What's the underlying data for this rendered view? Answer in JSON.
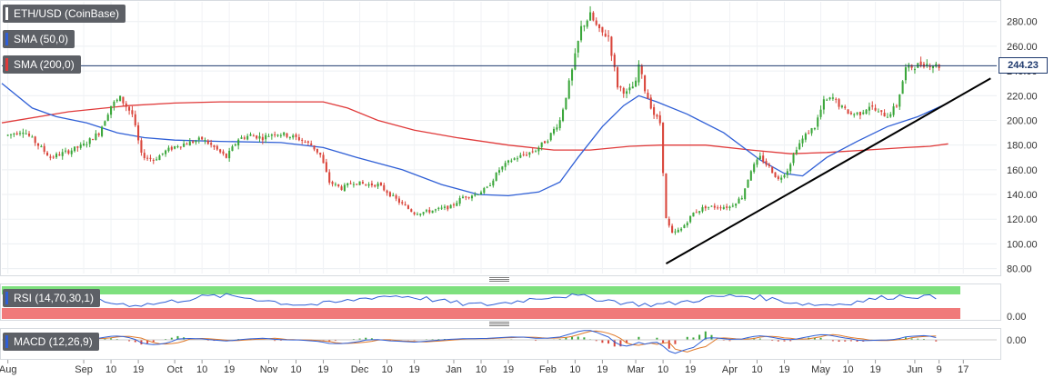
{
  "labels": {
    "symbol": "ETH/USD (CoinBase)",
    "sma50": "SMA (50,0)",
    "sma200": "SMA (200,0)",
    "rsi": "RSI (14,70,30,1)",
    "macd": "MACD (12,26,9)"
  },
  "last_price": "244.23",
  "colors": {
    "up": "#3aa63a",
    "down": "#d9443a",
    "sma50": "#2f5fd6",
    "sma200": "#e03a3a",
    "trendline": "#000000",
    "price_line": "#1f3a6e",
    "rsi_overbought": "#7ee07e",
    "rsi_oversold": "#f07a7a",
    "rsi_line": "#2f5fd6",
    "macd_line": "#2f5fd6",
    "signal_line": "#e07a2a"
  },
  "chart_data": {
    "type": "candlestick",
    "y_ticks": [
      "80.00",
      "100.00",
      "120.00",
      "140.00",
      "160.00",
      "180.00",
      "200.00",
      "220.00",
      "240.00",
      "260.00",
      "280.00"
    ],
    "y_tick_values": [
      80,
      100,
      120,
      140,
      160,
      180,
      200,
      220,
      240,
      260,
      280
    ],
    "ylim": [
      76,
      296
    ],
    "x_ticks": [
      {
        "label": "Aug",
        "day": 0
      },
      {
        "label": "Sep",
        "day": 25
      },
      {
        "label": "10",
        "day": 34
      },
      {
        "label": "19",
        "day": 43
      },
      {
        "label": "Oct",
        "day": 55
      },
      {
        "label": "10",
        "day": 64
      },
      {
        "label": "19",
        "day": 73
      },
      {
        "label": "Nov",
        "day": 86
      },
      {
        "label": "10",
        "day": 95
      },
      {
        "label": "19",
        "day": 104
      },
      {
        "label": "Dec",
        "day": 116
      },
      {
        "label": "10",
        "day": 125
      },
      {
        "label": "19",
        "day": 134
      },
      {
        "label": "Jan",
        "day": 147
      },
      {
        "label": "10",
        "day": 156
      },
      {
        "label": "19",
        "day": 165
      },
      {
        "label": "Feb",
        "day": 178
      },
      {
        "label": "10",
        "day": 187
      },
      {
        "label": "19",
        "day": 196
      },
      {
        "label": "Mar",
        "day": 207
      },
      {
        "label": "10",
        "day": 216
      },
      {
        "label": "19",
        "day": 225
      },
      {
        "label": "Apr",
        "day": 238
      },
      {
        "label": "10",
        "day": 247
      },
      {
        "label": "19",
        "day": 256
      },
      {
        "label": "May",
        "day": 268
      },
      {
        "label": "10",
        "day": 277
      },
      {
        "label": "19",
        "day": 286
      },
      {
        "label": "Jun",
        "day": 299
      },
      {
        "label": "9",
        "day": 307
      },
      {
        "label": "17",
        "day": 315
      }
    ],
    "x_range": [
      -2,
      326
    ],
    "last_day": 307,
    "price_keyframes": [
      [
        0,
        188
      ],
      [
        5,
        192
      ],
      [
        10,
        180
      ],
      [
        14,
        170
      ],
      [
        20,
        175
      ],
      [
        25,
        180
      ],
      [
        30,
        190
      ],
      [
        34,
        212
      ],
      [
        37,
        218
      ],
      [
        41,
        205
      ],
      [
        44,
        172
      ],
      [
        48,
        168
      ],
      [
        52,
        175
      ],
      [
        56,
        180
      ],
      [
        60,
        182
      ],
      [
        64,
        185
      ],
      [
        68,
        178
      ],
      [
        72,
        170
      ],
      [
        76,
        185
      ],
      [
        80,
        188
      ],
      [
        84,
        186
      ],
      [
        88,
        190
      ],
      [
        92,
        188
      ],
      [
        96,
        185
      ],
      [
        100,
        180
      ],
      [
        103,
        172
      ],
      [
        106,
        150
      ],
      [
        110,
        145
      ],
      [
        114,
        150
      ],
      [
        118,
        148
      ],
      [
        122,
        148
      ],
      [
        126,
        140
      ],
      [
        130,
        132
      ],
      [
        134,
        125
      ],
      [
        138,
        126
      ],
      [
        142,
        128
      ],
      [
        146,
        130
      ],
      [
        150,
        138
      ],
      [
        154,
        140
      ],
      [
        158,
        145
      ],
      [
        162,
        160
      ],
      [
        166,
        168
      ],
      [
        170,
        172
      ],
      [
        174,
        176
      ],
      [
        178,
        185
      ],
      [
        182,
        200
      ],
      [
        186,
        240
      ],
      [
        189,
        275
      ],
      [
        192,
        285
      ],
      [
        195,
        272
      ],
      [
        198,
        268
      ],
      [
        201,
        228
      ],
      [
        204,
        222
      ],
      [
        207,
        230
      ],
      [
        208,
        245
      ],
      [
        210,
        225
      ],
      [
        213,
        205
      ],
      [
        215,
        198
      ],
      [
        217,
        120
      ],
      [
        219,
        108
      ],
      [
        222,
        112
      ],
      [
        226,
        125
      ],
      [
        230,
        130
      ],
      [
        234,
        130
      ],
      [
        238,
        130
      ],
      [
        242,
        138
      ],
      [
        245,
        160
      ],
      [
        248,
        170
      ],
      [
        251,
        162
      ],
      [
        254,
        152
      ],
      [
        257,
        160
      ],
      [
        260,
        178
      ],
      [
        263,
        188
      ],
      [
        266,
        195
      ],
      [
        269,
        215
      ],
      [
        272,
        218
      ],
      [
        275,
        210
      ],
      [
        278,
        205
      ],
      [
        281,
        206
      ],
      [
        284,
        212
      ],
      [
        287,
        206
      ],
      [
        290,
        204
      ],
      [
        293,
        212
      ],
      [
        296,
        242
      ],
      [
        299,
        244
      ],
      [
        302,
        246
      ],
      [
        305,
        245
      ],
      [
        307,
        244
      ]
    ],
    "sma50": [
      [
        -2,
        230
      ],
      [
        8,
        210
      ],
      [
        16,
        203
      ],
      [
        26,
        198
      ],
      [
        36,
        190
      ],
      [
        45,
        186
      ],
      [
        55,
        184
      ],
      [
        70,
        183
      ],
      [
        90,
        182
      ],
      [
        104,
        178
      ],
      [
        115,
        170
      ],
      [
        130,
        160
      ],
      [
        143,
        148
      ],
      [
        155,
        140
      ],
      [
        165,
        139
      ],
      [
        175,
        142
      ],
      [
        182,
        150
      ],
      [
        188,
        170
      ],
      [
        196,
        195
      ],
      [
        203,
        212
      ],
      [
        208,
        220
      ],
      [
        214,
        215
      ],
      [
        224,
        205
      ],
      [
        236,
        190
      ],
      [
        248,
        168
      ],
      [
        256,
        157
      ],
      [
        262,
        155
      ],
      [
        270,
        170
      ],
      [
        280,
        183
      ],
      [
        290,
        195
      ],
      [
        300,
        203
      ],
      [
        310,
        214
      ]
    ],
    "sma200": [
      [
        -2,
        198
      ],
      [
        20,
        207
      ],
      [
        40,
        212
      ],
      [
        55,
        214
      ],
      [
        70,
        215
      ],
      [
        90,
        215
      ],
      [
        104,
        215
      ],
      [
        112,
        210
      ],
      [
        122,
        200
      ],
      [
        134,
        192
      ],
      [
        148,
        186
      ],
      [
        165,
        180
      ],
      [
        180,
        176
      ],
      [
        192,
        176
      ],
      [
        205,
        179
      ],
      [
        215,
        180
      ],
      [
        230,
        180
      ],
      [
        245,
        176
      ],
      [
        258,
        173
      ],
      [
        270,
        174
      ],
      [
        283,
        176
      ],
      [
        296,
        178
      ],
      [
        304,
        179
      ],
      [
        310,
        181
      ]
    ],
    "trendline": [
      [
        217,
        84
      ],
      [
        324,
        234
      ]
    ],
    "rsi": {
      "y_tick": "0.00"
    },
    "macd": {
      "y_tick": "0.00"
    }
  }
}
